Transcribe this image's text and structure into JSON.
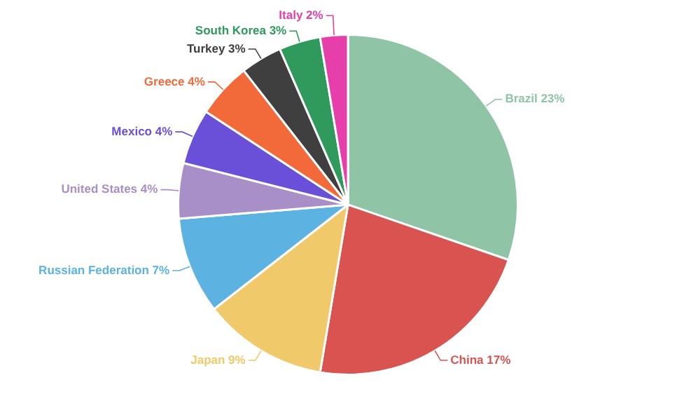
{
  "chart_data": {
    "type": "pie",
    "categories": [
      "Brazil",
      "China",
      "Japan",
      "Russian Federation",
      "United States",
      "Mexico",
      "Greece",
      "Turkey",
      "South Korea",
      "Italy"
    ],
    "values": [
      23,
      17,
      9,
      7,
      4,
      4,
      4,
      3,
      3,
      2
    ],
    "value_labels": [
      "23%",
      "17%",
      "9%",
      "7%",
      "4%",
      "4%",
      "4%",
      "3%",
      "3%",
      "2%"
    ],
    "colors": [
      "#8fc4a6",
      "#d95350",
      "#f0c96a",
      "#5cb3e2",
      "#a88fc8",
      "#6a50d8",
      "#f2693a",
      "#3f3f3f",
      "#2f9a5c",
      "#e63fa9"
    ],
    "legend": false
  }
}
